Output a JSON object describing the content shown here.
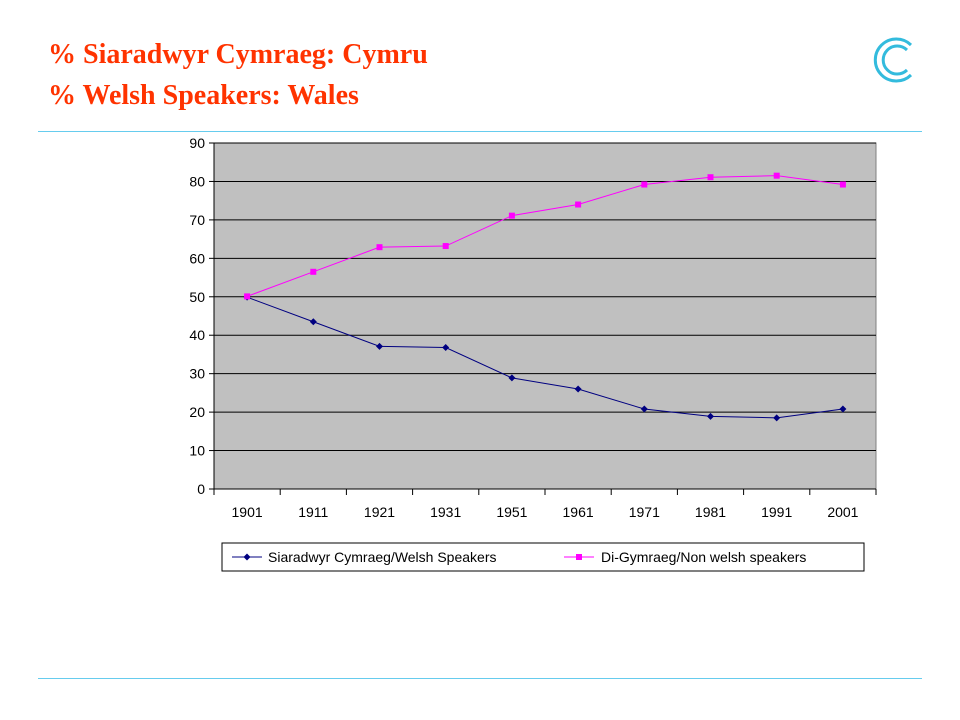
{
  "slide": {
    "title_line1": "% Siaradwyr Cymraeg: Cymru",
    "title_line2": "% Welsh Speakers: Wales",
    "logo_icon": "concentric-c-logo-icon",
    "colors": {
      "title": "#ff3300",
      "rule": "#66ccee",
      "logo": "#33bbdd"
    }
  },
  "chart_data": {
    "type": "line",
    "categories": [
      "1901",
      "1911",
      "1921",
      "1931",
      "1951",
      "1961",
      "1971",
      "1981",
      "1991",
      "2001"
    ],
    "ylim": [
      0,
      90
    ],
    "yticks": [
      0,
      10,
      20,
      30,
      40,
      50,
      60,
      70,
      80,
      90
    ],
    "grid": true,
    "plot_background": "#c0c0c0",
    "legend_position": "bottom",
    "series": [
      {
        "name": "Siaradwyr Cymraeg/Welsh Speakers",
        "values": [
          49.9,
          43.5,
          37.1,
          36.8,
          28.9,
          26.0,
          20.8,
          18.9,
          18.5,
          20.8
        ],
        "color": "#000080",
        "marker": "diamond"
      },
      {
        "name": "Di-Gymraeg/Non welsh speakers",
        "values": [
          50.1,
          56.5,
          62.9,
          63.2,
          71.1,
          74.0,
          79.2,
          81.1,
          81.5,
          79.2
        ],
        "color": "#ff00ff",
        "marker": "square"
      }
    ]
  }
}
